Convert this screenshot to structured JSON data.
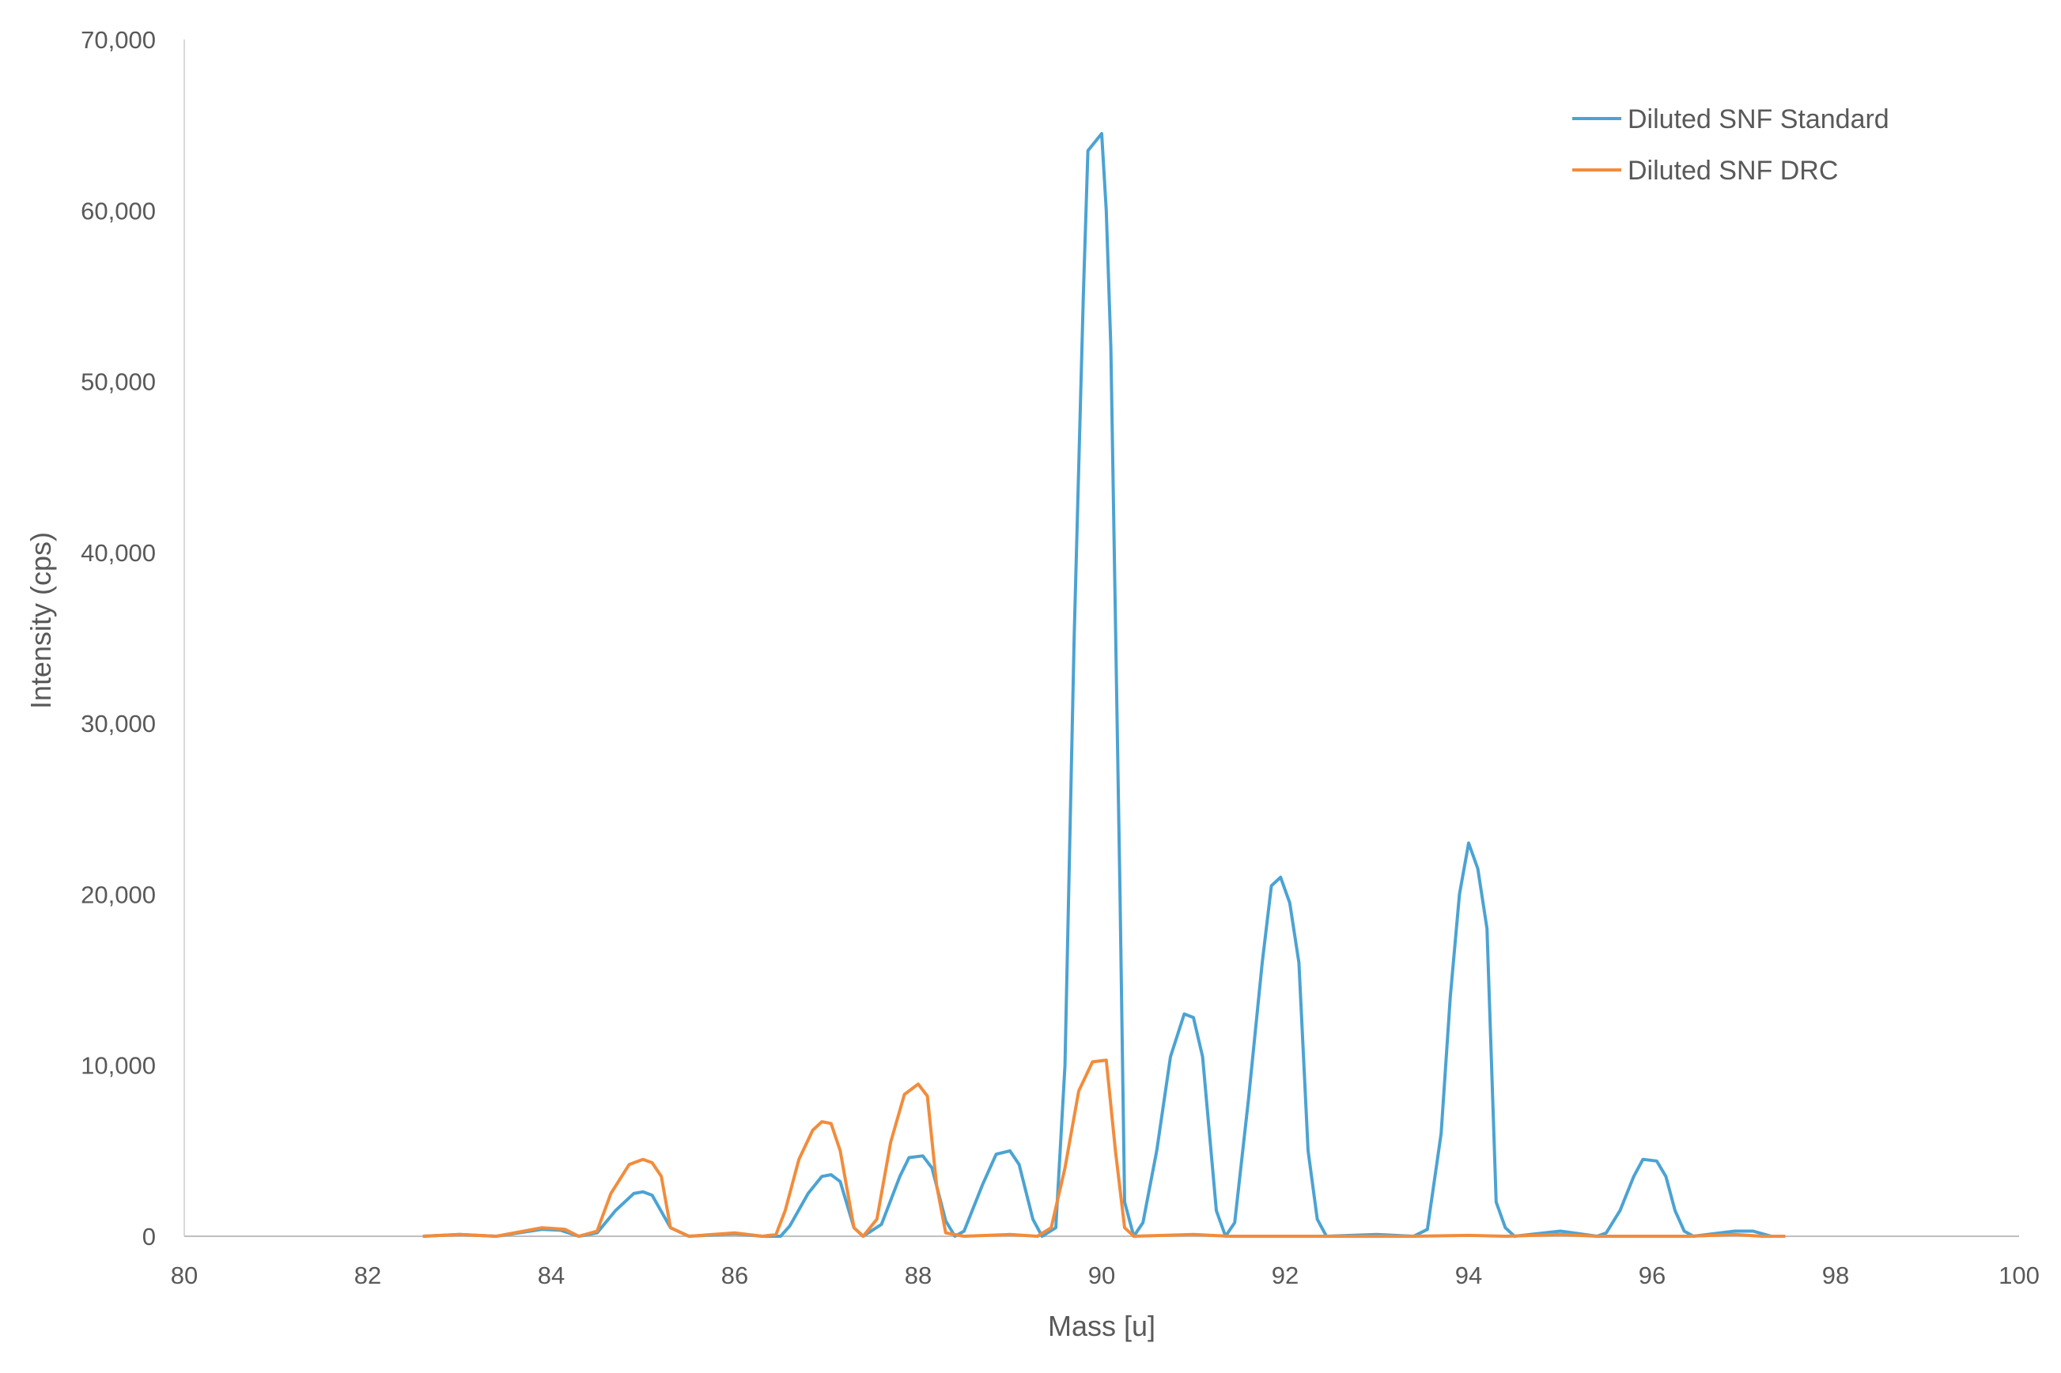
{
  "chart_data": {
    "type": "line",
    "xlabel": "Mass [u]",
    "ylabel": "Intensity (cps)",
    "xlim": [
      80,
      100
    ],
    "ylim": [
      0,
      70000
    ],
    "x_ticks": [
      "80",
      "82",
      "84",
      "86",
      "88",
      "90",
      "92",
      "94",
      "96",
      "98",
      "100"
    ],
    "y_ticks": [
      "0",
      "10,000",
      "20,000",
      "30,000",
      "40,000",
      "50,000",
      "60,000",
      "70,000"
    ],
    "grid": false,
    "legend_position": "top-right",
    "series": [
      {
        "name": "Diluted SNF Standard",
        "color": "#4BA3D3",
        "points": [
          [
            82.6,
            0
          ],
          [
            83.0,
            100
          ],
          [
            83.4,
            0
          ],
          [
            83.9,
            400
          ],
          [
            84.1,
            350
          ],
          [
            84.3,
            0
          ],
          [
            84.5,
            200
          ],
          [
            84.7,
            1500
          ],
          [
            84.9,
            2500
          ],
          [
            85.0,
            2600
          ],
          [
            85.1,
            2400
          ],
          [
            85.3,
            500
          ],
          [
            85.5,
            0
          ],
          [
            86.0,
            150
          ],
          [
            86.3,
            0
          ],
          [
            86.5,
            0
          ],
          [
            86.6,
            600
          ],
          [
            86.8,
            2500
          ],
          [
            86.95,
            3500
          ],
          [
            87.05,
            3600
          ],
          [
            87.15,
            3200
          ],
          [
            87.3,
            500
          ],
          [
            87.4,
            0
          ],
          [
            87.6,
            700
          ],
          [
            87.8,
            3500
          ],
          [
            87.9,
            4600
          ],
          [
            88.05,
            4700
          ],
          [
            88.15,
            4000
          ],
          [
            88.3,
            900
          ],
          [
            88.4,
            0
          ],
          [
            88.5,
            300
          ],
          [
            88.7,
            3000
          ],
          [
            88.85,
            4800
          ],
          [
            89.0,
            5000
          ],
          [
            89.1,
            4200
          ],
          [
            89.25,
            1000
          ],
          [
            89.35,
            0
          ],
          [
            89.5,
            500
          ],
          [
            89.6,
            10000
          ],
          [
            89.7,
            35000
          ],
          [
            89.8,
            55000
          ],
          [
            89.85,
            63500
          ],
          [
            90.0,
            64500
          ],
          [
            90.05,
            60000
          ],
          [
            90.1,
            52000
          ],
          [
            90.2,
            20000
          ],
          [
            90.25,
            2000
          ],
          [
            90.35,
            0
          ],
          [
            90.45,
            800
          ],
          [
            90.6,
            5000
          ],
          [
            90.75,
            10500
          ],
          [
            90.9,
            13000
          ],
          [
            91.0,
            12800
          ],
          [
            91.1,
            10500
          ],
          [
            91.25,
            1500
          ],
          [
            91.35,
            0
          ],
          [
            91.45,
            800
          ],
          [
            91.6,
            8000
          ],
          [
            91.75,
            16000
          ],
          [
            91.85,
            20500
          ],
          [
            91.95,
            21000
          ],
          [
            92.05,
            19500
          ],
          [
            92.15,
            16000
          ],
          [
            92.25,
            5000
          ],
          [
            92.35,
            1000
          ],
          [
            92.45,
            0
          ],
          [
            93.0,
            100
          ],
          [
            93.4,
            0
          ],
          [
            93.55,
            400
          ],
          [
            93.7,
            6000
          ],
          [
            93.8,
            14000
          ],
          [
            93.9,
            20000
          ],
          [
            94.0,
            23000
          ],
          [
            94.1,
            21500
          ],
          [
            94.2,
            18000
          ],
          [
            94.3,
            2000
          ],
          [
            94.4,
            500
          ],
          [
            94.5,
            0
          ],
          [
            95.0,
            300
          ],
          [
            95.4,
            0
          ],
          [
            95.5,
            200
          ],
          [
            95.65,
            1500
          ],
          [
            95.8,
            3500
          ],
          [
            95.9,
            4500
          ],
          [
            96.05,
            4400
          ],
          [
            96.15,
            3500
          ],
          [
            96.25,
            1500
          ],
          [
            96.35,
            300
          ],
          [
            96.45,
            0
          ],
          [
            96.9,
            300
          ],
          [
            97.1,
            300
          ],
          [
            97.3,
            0
          ],
          [
            97.45,
            0
          ]
        ]
      },
      {
        "name": "Diluted SNF DRC",
        "color": "#F28C3B",
        "points": [
          [
            82.6,
            0
          ],
          [
            83.0,
            100
          ],
          [
            83.4,
            0
          ],
          [
            83.9,
            500
          ],
          [
            84.15,
            400
          ],
          [
            84.3,
            0
          ],
          [
            84.5,
            300
          ],
          [
            84.65,
            2500
          ],
          [
            84.85,
            4200
          ],
          [
            85.0,
            4500
          ],
          [
            85.1,
            4300
          ],
          [
            85.2,
            3500
          ],
          [
            85.3,
            500
          ],
          [
            85.5,
            0
          ],
          [
            86.0,
            200
          ],
          [
            86.3,
            0
          ],
          [
            86.45,
            100
          ],
          [
            86.55,
            1500
          ],
          [
            86.7,
            4500
          ],
          [
            86.85,
            6200
          ],
          [
            86.95,
            6700
          ],
          [
            87.05,
            6600
          ],
          [
            87.15,
            5000
          ],
          [
            87.3,
            500
          ],
          [
            87.4,
            0
          ],
          [
            87.55,
            1000
          ],
          [
            87.7,
            5500
          ],
          [
            87.85,
            8300
          ],
          [
            88.0,
            8900
          ],
          [
            88.1,
            8200
          ],
          [
            88.2,
            3000
          ],
          [
            88.3,
            200
          ],
          [
            88.5,
            0
          ],
          [
            89.0,
            100
          ],
          [
            89.3,
            0
          ],
          [
            89.45,
            500
          ],
          [
            89.6,
            4000
          ],
          [
            89.75,
            8500
          ],
          [
            89.9,
            10200
          ],
          [
            90.05,
            10300
          ],
          [
            90.15,
            5000
          ],
          [
            90.25,
            500
          ],
          [
            90.35,
            0
          ],
          [
            91.0,
            100
          ],
          [
            91.4,
            0
          ],
          [
            92.0,
            0
          ],
          [
            93.0,
            0
          ],
          [
            93.4,
            0
          ],
          [
            94.0,
            50
          ],
          [
            94.4,
            0
          ],
          [
            95.0,
            100
          ],
          [
            95.4,
            0
          ],
          [
            96.0,
            0
          ],
          [
            96.4,
            0
          ],
          [
            96.9,
            100
          ],
          [
            97.2,
            0
          ],
          [
            97.45,
            0
          ]
        ]
      }
    ]
  }
}
